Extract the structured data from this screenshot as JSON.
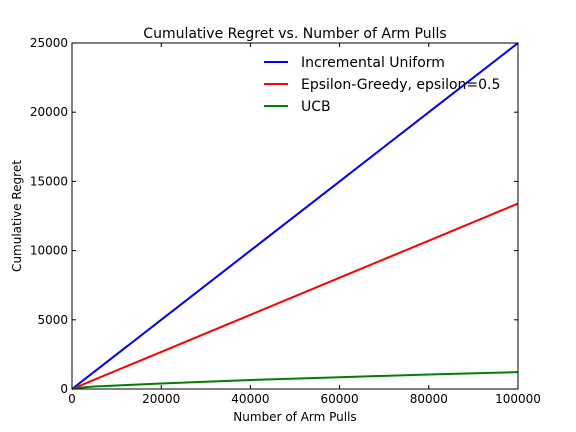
{
  "chart_data": {
    "type": "line",
    "title": "Cumulative Regret vs. Number of Arm Pulls",
    "xlabel": "Number of Arm Pulls",
    "ylabel": "Cumulative Regret",
    "xlim": [
      0,
      100000
    ],
    "ylim": [
      0,
      25000
    ],
    "x_ticks": [
      0,
      20000,
      40000,
      60000,
      80000,
      100000
    ],
    "y_ticks": [
      0,
      5000,
      10000,
      15000,
      20000,
      25000
    ],
    "legend_position": "top-right",
    "grid": false,
    "series": [
      {
        "name": "Incremental Uniform",
        "color": "#0000ff",
        "x": [
          0,
          20000,
          40000,
          60000,
          80000,
          100000
        ],
        "y": [
          0,
          5000,
          10000,
          15000,
          20000,
          25000
        ]
      },
      {
        "name": "Epsilon-Greedy, epsilon=0.5",
        "color": "#ff0000",
        "x": [
          0,
          20000,
          40000,
          60000,
          80000,
          100000
        ],
        "y": [
          0,
          2680,
          5360,
          8040,
          10720,
          13400
        ]
      },
      {
        "name": "UCB",
        "color": "#008000",
        "x": [
          0,
          1000,
          5000,
          10000,
          20000,
          40000,
          60000,
          80000,
          100000
        ],
        "y": [
          0,
          80,
          180,
          250,
          400,
          650,
          850,
          1050,
          1220
        ]
      }
    ]
  }
}
